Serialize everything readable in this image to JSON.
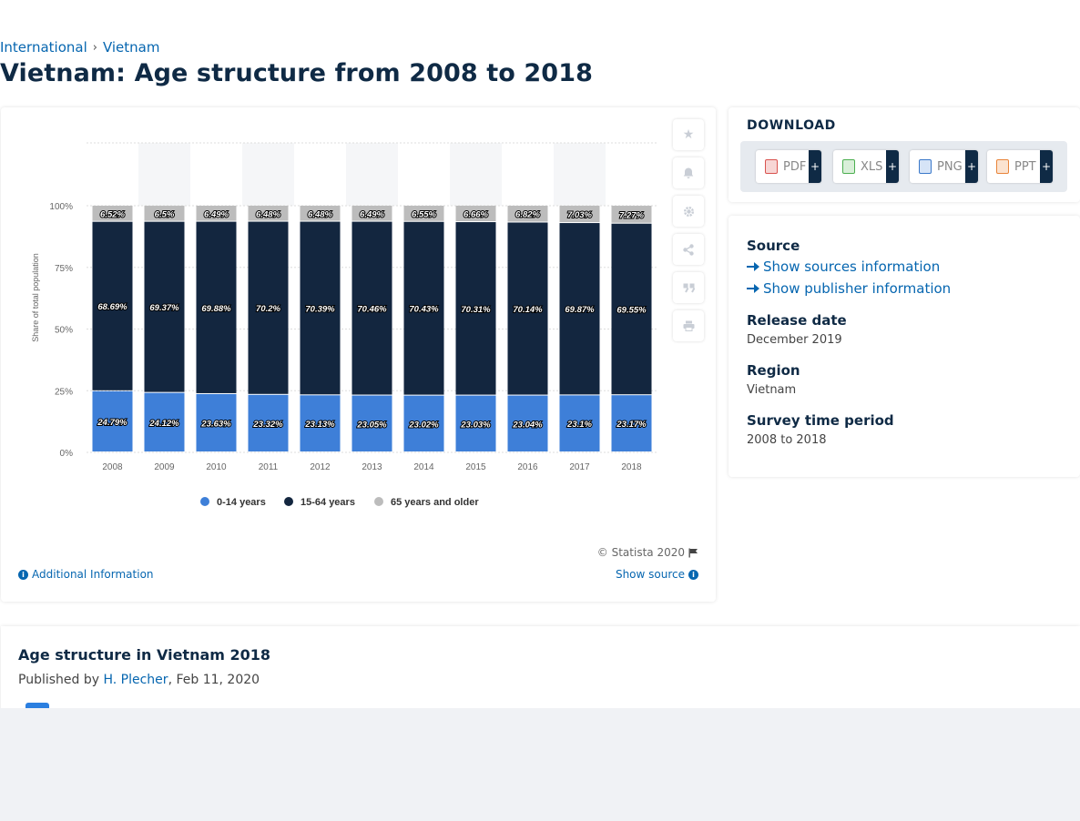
{
  "breadcrumb": {
    "items": [
      "International",
      "Vietnam"
    ]
  },
  "page_title": "Vietnam: Age structure from 2008 to 2018",
  "chart_data": {
    "type": "bar",
    "stacked": true,
    "categories": [
      "2008",
      "2009",
      "2010",
      "2011",
      "2012",
      "2013",
      "2014",
      "2015",
      "2016",
      "2017",
      "2018"
    ],
    "series": [
      {
        "name": "0-14 years",
        "color": "#3e7fd8",
        "values": [
          24.79,
          24.12,
          23.63,
          23.32,
          23.13,
          23.05,
          23.02,
          23.03,
          23.04,
          23.1,
          23.17
        ],
        "labels": [
          "24.79%",
          "24.12%",
          "23.63%",
          "23.32%",
          "23.13%",
          "23.05%",
          "23.02%",
          "23.03%",
          "23.04%",
          "23.1%",
          "23.17%"
        ]
      },
      {
        "name": "15-64 years",
        "color": "#13263f",
        "values": [
          68.69,
          69.37,
          69.88,
          70.2,
          70.39,
          70.46,
          70.43,
          70.31,
          70.14,
          69.87,
          69.55
        ],
        "labels": [
          "68.69%",
          "69.37%",
          "69.88%",
          "70.2%",
          "70.39%",
          "70.46%",
          "70.43%",
          "70.31%",
          "70.14%",
          "69.87%",
          "69.55%"
        ]
      },
      {
        "name": "65 years and older",
        "color": "#bcbcbc",
        "values": [
          6.52,
          6.5,
          6.49,
          6.48,
          6.48,
          6.49,
          6.55,
          6.66,
          6.82,
          7.03,
          7.27
        ],
        "labels": [
          "6.52%",
          "6.5%",
          "6.49%",
          "6.48%",
          "6.48%",
          "6.49%",
          "6.55%",
          "6.66%",
          "6.82%",
          "7.03%",
          "7.27%"
        ]
      }
    ],
    "ylabel": "Share of total population",
    "ylim": [
      0,
      100
    ],
    "yticks": [
      "0%",
      "25%",
      "50%",
      "75%",
      "100%"
    ],
    "ytick_values": [
      0,
      25,
      50,
      75,
      100
    ],
    "legend_position": "bottom-center",
    "grid": true
  },
  "chart_footer": {
    "copyright": "© Statista 2020",
    "additional_info": "Additional Information",
    "show_source": "Show source"
  },
  "toolbar_icons": [
    "star-icon",
    "bell-icon",
    "gear-icon",
    "share-icon",
    "quote-icon",
    "print-icon"
  ],
  "download": {
    "title": "DOWNLOAD",
    "buttons": [
      {
        "label": "PDF",
        "color": "#d9534f"
      },
      {
        "label": "XLS",
        "color": "#4caf50"
      },
      {
        "label": "PNG",
        "color": "#3a78c9"
      },
      {
        "label": "PPT",
        "color": "#e8843a"
      }
    ],
    "plus": "+"
  },
  "meta": {
    "source_label": "Source",
    "show_sources": "Show sources information",
    "show_publisher": "Show publisher information",
    "release_label": "Release date",
    "release_value": "December 2019",
    "region_label": "Region",
    "region_value": "Vietnam",
    "survey_label": "Survey time period",
    "survey_value": "2008 to 2018"
  },
  "description": {
    "title": "Age structure in Vietnam 2018",
    "published_prefix": "Published by",
    "author": "H. Plecher",
    "date": ", Feb 11, 2020"
  }
}
